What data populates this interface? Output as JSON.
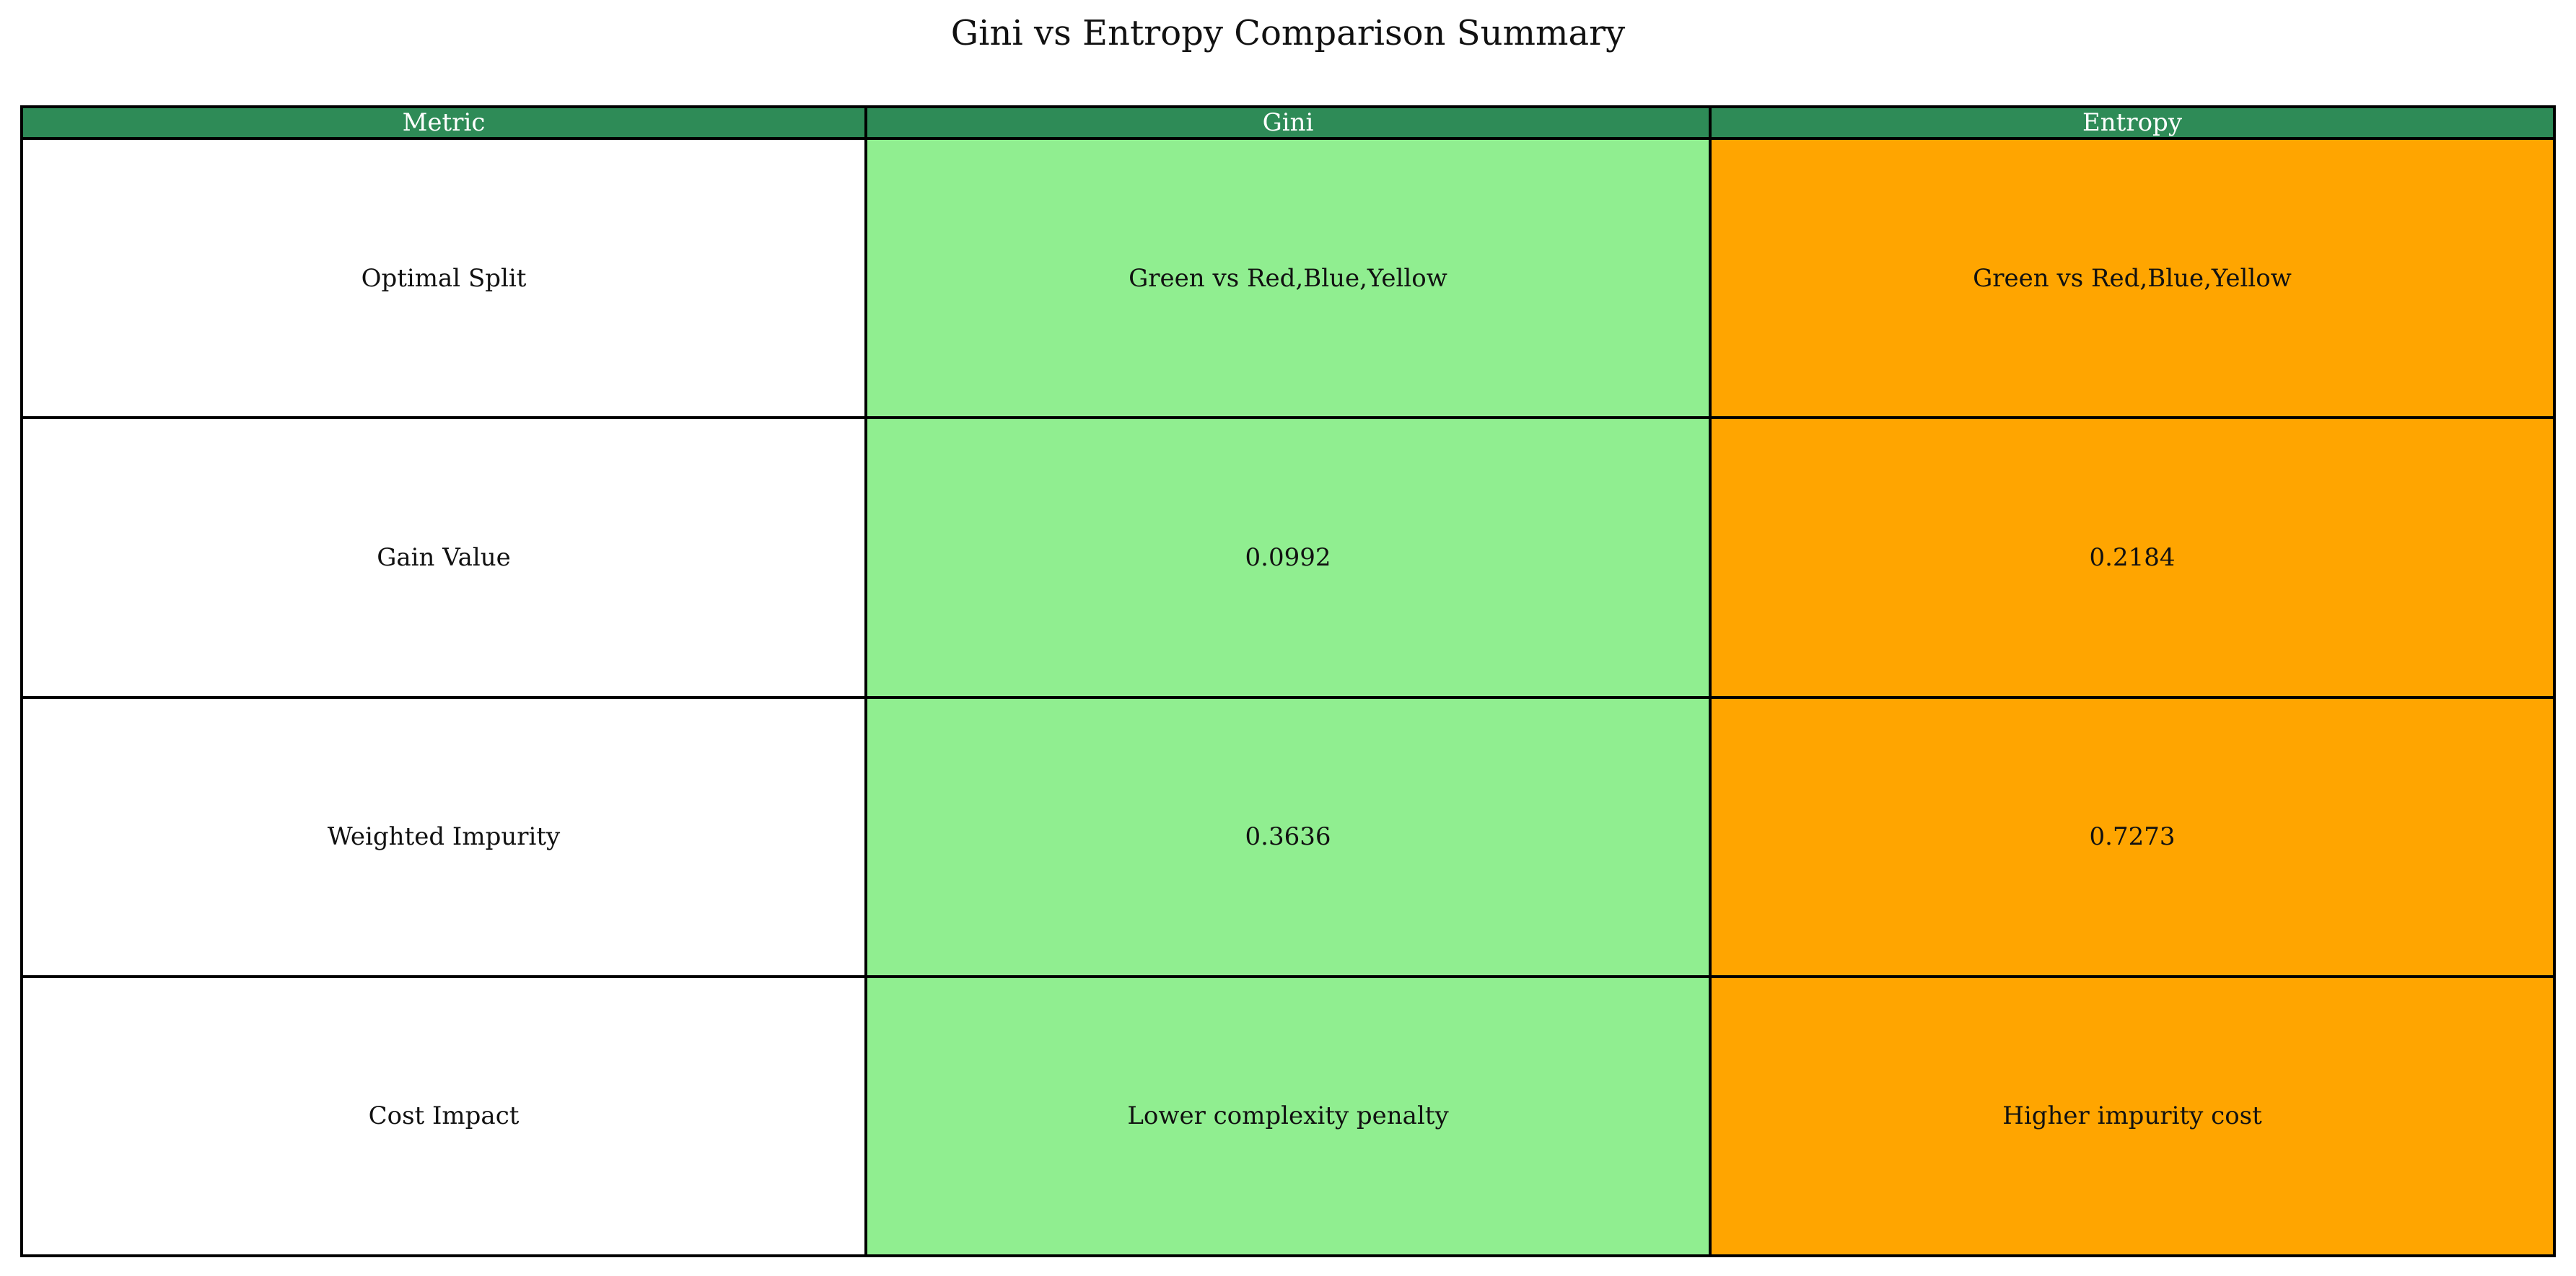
{
  "title": "Gini vs Entropy Comparison Summary",
  "colors": {
    "header_bg": "#2e8b57",
    "header_text": "#ffffff",
    "metric_bg": "#ffffff",
    "gini_bg": "#90ee90",
    "entropy_bg": "#ffa500",
    "border": "#000000"
  },
  "chart_data": {
    "type": "table",
    "title": "Gini vs Entropy Comparison Summary",
    "columns": [
      "Metric",
      "Gini",
      "Entropy"
    ],
    "rows": [
      [
        "Optimal Split",
        "Green vs Red,Blue,Yellow",
        "Green vs Red,Blue,Yellow"
      ],
      [
        "Gain Value",
        "0.0992",
        "0.2184"
      ],
      [
        "Weighted Impurity",
        "0.3636",
        "0.7273"
      ],
      [
        "Cost Impact",
        "Lower complexity penalty",
        "Higher impurity cost"
      ]
    ]
  }
}
